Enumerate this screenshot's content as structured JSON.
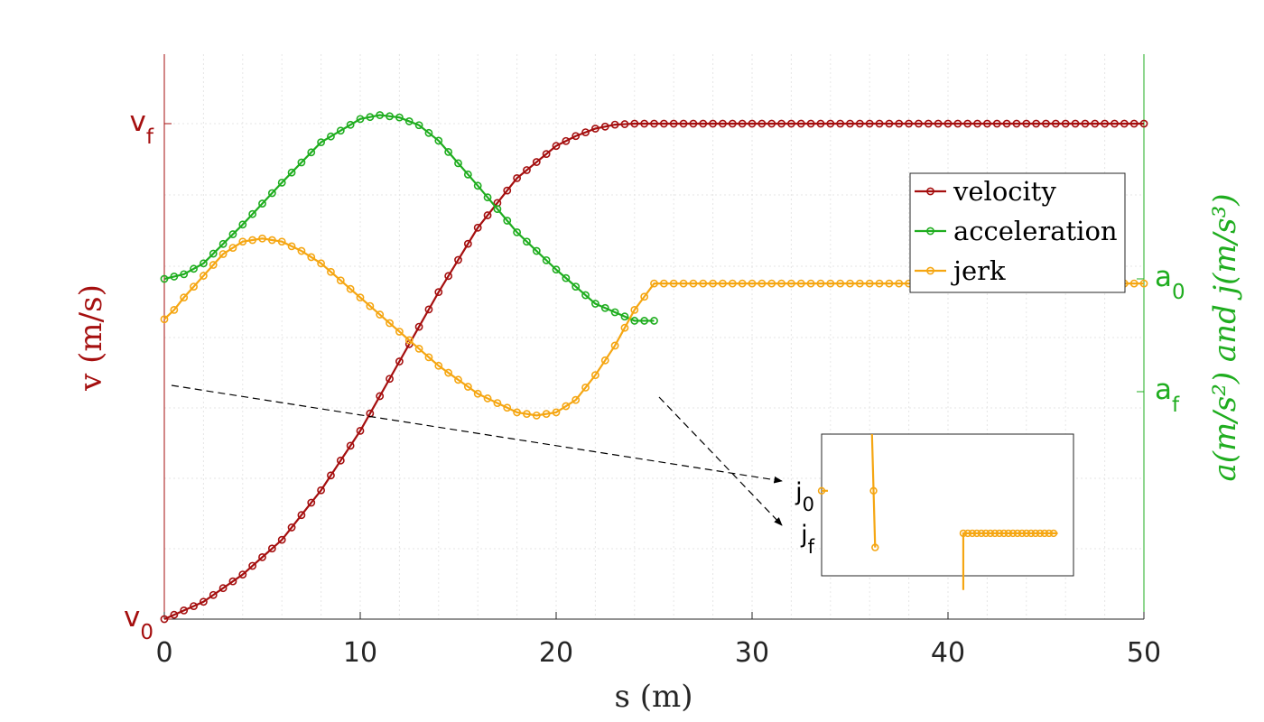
{
  "chart_data": {
    "type": "line",
    "xlabel": "s (m)",
    "ylabel_left": "v (m/s)",
    "ylabel_right": "a(m/s²) and j(m/s³)",
    "xlim": [
      0,
      50
    ],
    "x_ticks": [
      "0",
      "10",
      "20",
      "30",
      "40",
      "50"
    ],
    "left_ticks": [
      {
        "symbol": "v",
        "sub": "0",
        "level": 0
      },
      {
        "symbol": "v",
        "sub": "f",
        "level": 1
      }
    ],
    "right_ticks": [
      {
        "symbol": "a",
        "sub": "0",
        "level": "a0"
      },
      {
        "symbol": "a",
        "sub": "f",
        "level": "af"
      }
    ],
    "grid": true,
    "legend_position": "upper-right",
    "series": [
      {
        "name": "velocity",
        "color": "#a50f0f",
        "axis": "left",
        "x": [
          0,
          2,
          4,
          6,
          8,
          10,
          12,
          14,
          16,
          18,
          20,
          21,
          22,
          23,
          24,
          25,
          30,
          40,
          50
        ],
        "y": [
          0,
          0.035,
          0.09,
          0.16,
          0.26,
          0.38,
          0.52,
          0.66,
          0.79,
          0.89,
          0.955,
          0.975,
          0.99,
          0.998,
          1.0,
          1.0,
          1.0,
          1.0,
          1.0
        ]
      },
      {
        "name": "acceleration",
        "color": "#1fad1f",
        "axis": "right",
        "x": [
          0,
          1,
          2,
          4,
          6,
          8,
          10,
          11,
          12,
          13,
          14,
          16,
          18,
          20,
          22,
          24,
          25
        ],
        "y": [
          0,
          0.03,
          0.1,
          0.35,
          0.62,
          0.88,
          1.03,
          1.055,
          1.04,
          0.99,
          0.89,
          0.6,
          0.3,
          0.06,
          -0.16,
          -0.27,
          -0.27
        ]
      },
      {
        "name": "jerk",
        "color": "#f5a612",
        "axis": "right",
        "x": [
          0,
          0.5,
          1,
          2,
          3,
          4,
          5,
          6,
          7,
          8,
          10,
          12,
          14,
          16,
          18,
          19,
          20,
          21,
          22,
          23,
          24,
          25,
          30,
          40,
          50
        ],
        "y": [
          -0.26,
          -0.2,
          -0.12,
          0.02,
          0.16,
          0.24,
          0.26,
          0.24,
          0.18,
          0.1,
          -0.12,
          -0.34,
          -0.56,
          -0.74,
          -0.86,
          -0.88,
          -0.86,
          -0.78,
          -0.62,
          -0.43,
          -0.2,
          -0.03,
          -0.03,
          -0.03,
          -0.03
        ]
      }
    ],
    "inset": {
      "labels": [
        {
          "symbol": "j",
          "sub": "0"
        },
        {
          "symbol": "j",
          "sub": "f"
        }
      ],
      "jerk_segment_1": {
        "x": [
          0,
          0.2
        ],
        "y": [
          0.6,
          0.6
        ]
      },
      "jerk_segment_2": {
        "x": [
          1.6,
          1.65,
          1.7
        ],
        "y": [
          1.0,
          0.6,
          0.2
        ]
      },
      "jerk_segment_3": {
        "x": [
          4.5,
          4.5,
          7.5
        ],
        "y": [
          -0.1,
          0.3,
          0.3
        ]
      }
    }
  }
}
